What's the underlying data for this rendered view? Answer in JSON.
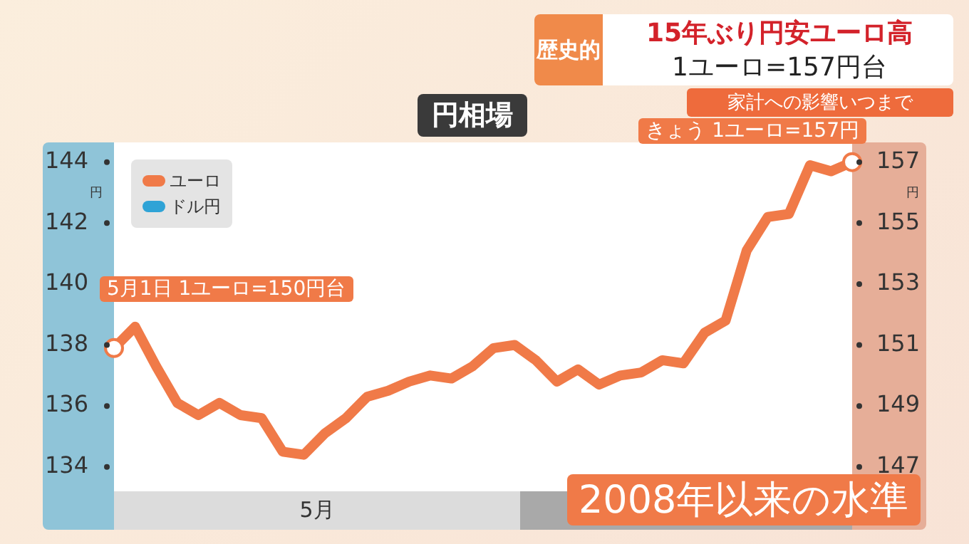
{
  "chart_data": {
    "type": "line",
    "title": "円相場",
    "annotations": [
      "歴史的",
      "15年ぶり円安ユーロ高",
      "1ユーロ=157円台",
      "家計への影響いつまで",
      "2008年以来の水準",
      "5月",
      "5月1日 1ユーロ=150円台",
      "きょう 1ユーロ=157円"
    ],
    "categories": [
      null,
      null,
      null,
      null,
      null,
      null,
      null,
      null,
      null,
      null,
      null,
      null,
      null,
      null,
      null,
      null,
      null,
      null,
      null,
      null,
      null,
      null,
      null,
      null,
      null,
      null,
      null,
      null,
      null,
      null,
      null,
      null,
      null,
      null,
      null,
      null
    ],
    "series": [
      {
        "name": "ユーロ",
        "color": "#f07a48",
        "axis": "y2",
        "values": [
          150.9,
          151.6,
          150.3,
          149.1,
          148.7,
          149.1,
          148.7,
          148.6,
          147.5,
          147.4,
          148.1,
          148.6,
          149.3,
          149.5,
          149.8,
          150.0,
          149.9,
          150.3,
          150.9,
          151.0,
          150.5,
          149.8,
          150.2,
          149.7,
          150.0,
          150.1,
          150.5,
          150.4,
          151.4,
          151.8,
          154.1,
          155.2,
          155.3,
          156.9,
          156.7,
          157
        ]
      },
      {
        "name": "ドル円",
        "color": "#2fa3d6",
        "axis": "y",
        "values": [
          null,
          null,
          null,
          null,
          null,
          null,
          null,
          null,
          null,
          null,
          null,
          null,
          null,
          null,
          null,
          null,
          null,
          null,
          null,
          null,
          null,
          null,
          null,
          null,
          null,
          null,
          null,
          null,
          null,
          null,
          null,
          null,
          null,
          null,
          null,
          null
        ]
      }
    ],
    "ylabel": "円",
    "y2label": "円",
    "ylim": [
      133.2,
      144.6
    ],
    "yticks": [
      134,
      136,
      138,
      140,
      142,
      144
    ],
    "y2lim": [
      146.2,
      157.6
    ],
    "y2ticks": [
      147,
      149,
      151,
      153,
      155,
      157
    ],
    "grid": false,
    "legend": "top left",
    "line_style": "solid"
  }
}
